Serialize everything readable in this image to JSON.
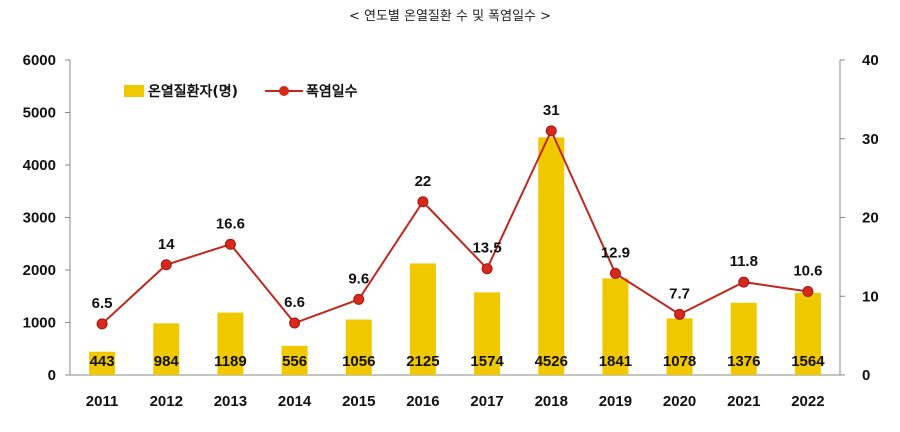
{
  "chart_data": {
    "type": "bar+line",
    "title": "< 연도별 온열질환 수 및 폭염일수 >",
    "categories": [
      "2011",
      "2012",
      "2013",
      "2014",
      "2015",
      "2016",
      "2017",
      "2018",
      "2019",
      "2020",
      "2021",
      "2022"
    ],
    "series": [
      {
        "name": "온열질환자(명)",
        "type": "bar",
        "axis": "left",
        "color": "#f0c800",
        "values": [
          443,
          984,
          1189,
          556,
          1056,
          2125,
          1574,
          4526,
          1841,
          1078,
          1376,
          1564
        ]
      },
      {
        "name": "폭염일수",
        "type": "line",
        "axis": "right",
        "color": "#c0281f",
        "values": [
          6.5,
          14,
          16.6,
          6.6,
          9.6,
          22,
          13.5,
          31,
          12.9,
          7.7,
          11.8,
          10.6
        ]
      }
    ],
    "y_left": {
      "min": 0,
      "max": 6000,
      "ticks": [
        "0",
        "1000",
        "2000",
        "3000",
        "4000",
        "5000",
        "6000"
      ]
    },
    "y_right": {
      "min": 0,
      "max": 40,
      "ticks": [
        "0",
        "10",
        "20",
        "30",
        "40"
      ]
    },
    "bar_labels": [
      "443",
      "984",
      "1189",
      "556",
      "1056",
      "2125",
      "1574",
      "4526",
      "1841",
      "1078",
      "1376",
      "1564"
    ],
    "line_labels": [
      "6.5",
      "14",
      "16.6",
      "6.6",
      "9.6",
      "22",
      "13.5",
      "31",
      "12.9",
      "7.7",
      "11.8",
      "10.6"
    ],
    "legend_position": "top-left",
    "grid": false
  }
}
